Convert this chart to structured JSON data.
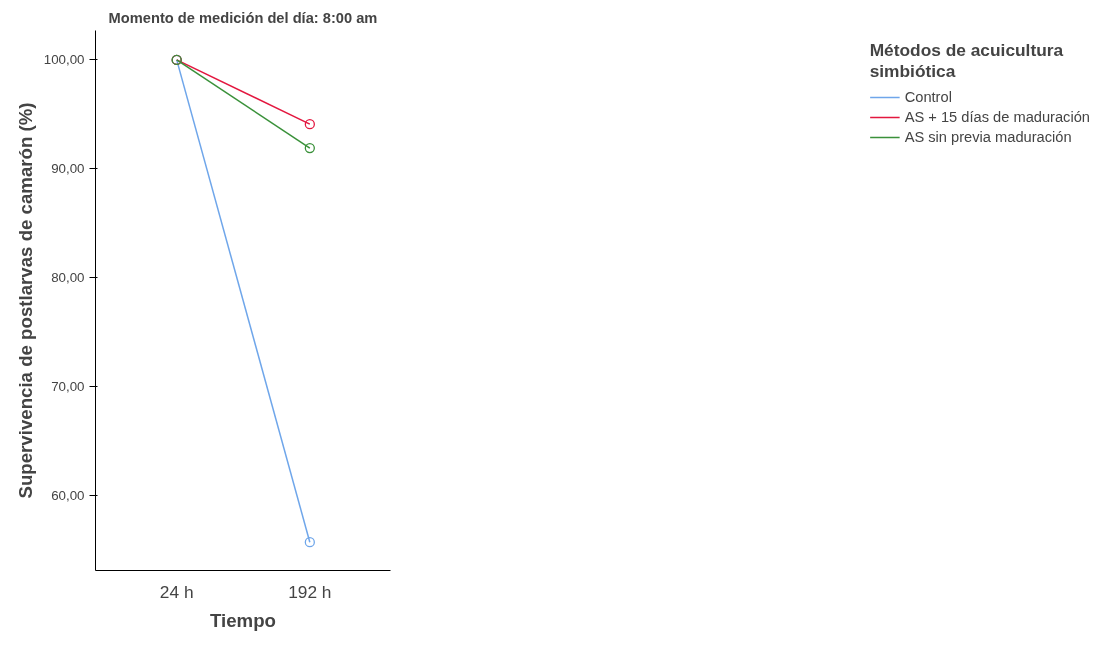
{
  "chart_data": {
    "type": "line",
    "title": "Momento de medición del día: 8:00 am",
    "xlabel": "Tiempo",
    "ylabel": "Supervivencia de postlarvas de camarón (%)",
    "legend_title": "Métodos de acuicultura simbiótica",
    "categories": [
      "24 h",
      "192 h"
    ],
    "series": [
      {
        "name": "Control",
        "color": "#6fa6ea",
        "values": [
          100,
          55.7
        ]
      },
      {
        "name": "AS + 15 días de maduración",
        "color": "#e3173f",
        "values": [
          100,
          94.1
        ]
      },
      {
        "name": "AS sin previa maduración",
        "color": "#3a913a",
        "values": [
          100,
          91.9
        ]
      }
    ],
    "ylim": [
      53.1,
      102.7
    ],
    "yticks": [
      {
        "value": 60,
        "label": "60,00"
      },
      {
        "value": 70,
        "label": "70,00"
      },
      {
        "value": 80,
        "label": "80,00"
      },
      {
        "value": 90,
        "label": "90,00"
      },
      {
        "value": 100,
        "label": "100,00"
      }
    ],
    "grid": false,
    "legend": "right",
    "marker": "circle",
    "line_style": "solid"
  }
}
